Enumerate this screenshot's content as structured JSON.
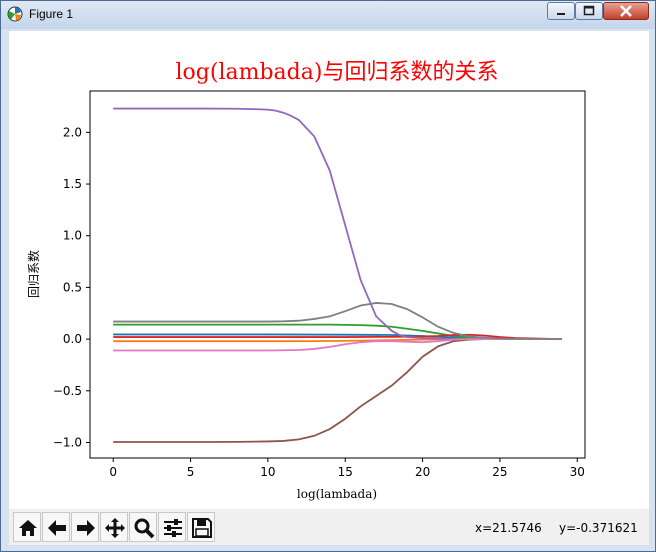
{
  "window": {
    "title": "Figure 1"
  },
  "toolbar": {
    "items": [
      {
        "name": "home-icon"
      },
      {
        "name": "back-arrow-icon"
      },
      {
        "name": "forward-arrow-icon"
      },
      {
        "name": "pan-icon"
      },
      {
        "name": "zoom-icon"
      },
      {
        "name": "configure-subplots-icon"
      },
      {
        "name": "save-icon"
      }
    ],
    "x_readout": "x=21.5746",
    "y_readout": "y=-0.371621"
  },
  "chart_data": {
    "type": "line",
    "title": "log(lambada)与回归系数的关系",
    "title_color": "#ff0000",
    "xlabel": "log(lambada)",
    "ylabel": "回归系数",
    "xlim": [
      -1.5,
      30.5
    ],
    "ylim": [
      -1.15,
      2.4
    ],
    "xticks": [
      0,
      5,
      10,
      15,
      20,
      25,
      30
    ],
    "yticks": [
      -1.0,
      -0.5,
      0.0,
      0.5,
      1.0,
      1.5,
      2.0
    ],
    "ytick_labels": [
      "−1.0",
      "−0.5",
      "0.0",
      "0.5",
      "1.0",
      "1.5",
      "2.0"
    ],
    "grid": false,
    "legend": "none",
    "series": [
      {
        "color": "#1f77b4",
        "x": [
          0,
          5,
          10,
          15,
          18,
          20,
          22,
          25,
          29
        ],
        "y": [
          0.045,
          0.045,
          0.045,
          0.043,
          0.04,
          0.03,
          0.015,
          0.005,
          0.0
        ]
      },
      {
        "color": "#ff7f0e",
        "x": [
          0,
          5,
          10,
          12,
          14,
          16,
          18,
          20,
          22,
          25,
          29
        ],
        "y": [
          -0.02,
          -0.02,
          -0.02,
          -0.02,
          -0.018,
          -0.015,
          -0.01,
          -0.005,
          0.0,
          0.0,
          0.0
        ]
      },
      {
        "color": "#2ca02c",
        "x": [
          0,
          5,
          10,
          12,
          14,
          16,
          17,
          18,
          19,
          20,
          21,
          22,
          23,
          25,
          29
        ],
        "y": [
          0.14,
          0.14,
          0.14,
          0.14,
          0.14,
          0.135,
          0.13,
          0.12,
          0.1,
          0.08,
          0.055,
          0.03,
          0.015,
          0.005,
          0.0
        ]
      },
      {
        "color": "#d62728",
        "x": [
          0,
          5,
          10,
          15,
          18,
          20,
          21,
          22,
          23,
          24,
          25,
          26,
          29
        ],
        "y": [
          0.02,
          0.02,
          0.02,
          0.02,
          0.022,
          0.025,
          0.03,
          0.04,
          0.042,
          0.035,
          0.02,
          0.01,
          0.0
        ]
      },
      {
        "color": "#9467bd",
        "x": [
          0,
          2,
          4,
          6,
          8,
          9,
          10,
          10.5,
          11,
          11.5,
          12,
          13,
          14,
          15,
          16,
          17,
          18,
          18.5,
          19,
          20,
          21,
          22,
          23,
          25,
          29
        ],
        "y": [
          2.23,
          2.23,
          2.23,
          2.23,
          2.228,
          2.225,
          2.22,
          2.21,
          2.19,
          2.16,
          2.12,
          1.96,
          1.63,
          1.1,
          0.57,
          0.22,
          0.08,
          0.04,
          0.02,
          0.01,
          0.005,
          0.002,
          0.0,
          0.0,
          0.0
        ]
      },
      {
        "color": "#8c564b",
        "x": [
          0,
          2,
          4,
          6,
          8,
          10,
          11,
          12,
          13,
          14,
          15,
          16,
          17,
          18,
          19,
          20,
          21,
          22,
          23,
          24,
          25,
          27,
          29
        ],
        "y": [
          -0.995,
          -0.995,
          -0.995,
          -0.995,
          -0.994,
          -0.99,
          -0.985,
          -0.97,
          -0.935,
          -0.87,
          -0.77,
          -0.65,
          -0.55,
          -0.45,
          -0.32,
          -0.17,
          -0.07,
          -0.02,
          -0.005,
          0.0,
          0.0,
          0.0,
          0.0
        ]
      },
      {
        "color": "#e377c2",
        "x": [
          0,
          5,
          10,
          12,
          13,
          14,
          15,
          16,
          17,
          18,
          19,
          20,
          21,
          22,
          23,
          25,
          29
        ],
        "y": [
          -0.11,
          -0.11,
          -0.11,
          -0.105,
          -0.095,
          -0.075,
          -0.05,
          -0.03,
          -0.02,
          -0.02,
          -0.025,
          -0.03,
          -0.02,
          -0.005,
          0.0,
          0.0,
          0.0
        ]
      },
      {
        "color": "#7f7f7f",
        "x": [
          0,
          5,
          10,
          11,
          12,
          13,
          14,
          15,
          16,
          17,
          18,
          19,
          20,
          21,
          22,
          23,
          25,
          29
        ],
        "y": [
          0.17,
          0.17,
          0.17,
          0.172,
          0.178,
          0.195,
          0.22,
          0.27,
          0.325,
          0.35,
          0.34,
          0.29,
          0.21,
          0.12,
          0.06,
          0.025,
          0.005,
          0.0
        ]
      }
    ]
  }
}
